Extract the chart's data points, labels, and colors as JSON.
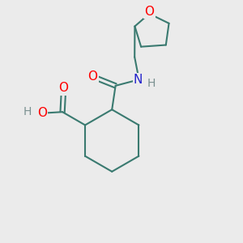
{
  "bg_color": "#ebebeb",
  "bond_color": "#3a7a70",
  "bond_width": 1.5,
  "atom_colors": {
    "O": "#ff0000",
    "N": "#2222cc",
    "H": "#7a9090",
    "C": "#3a7a70"
  },
  "figsize": [
    3.0,
    3.0
  ],
  "dpi": 100,
  "xlim": [
    0,
    10
  ],
  "ylim": [
    0,
    10
  ]
}
